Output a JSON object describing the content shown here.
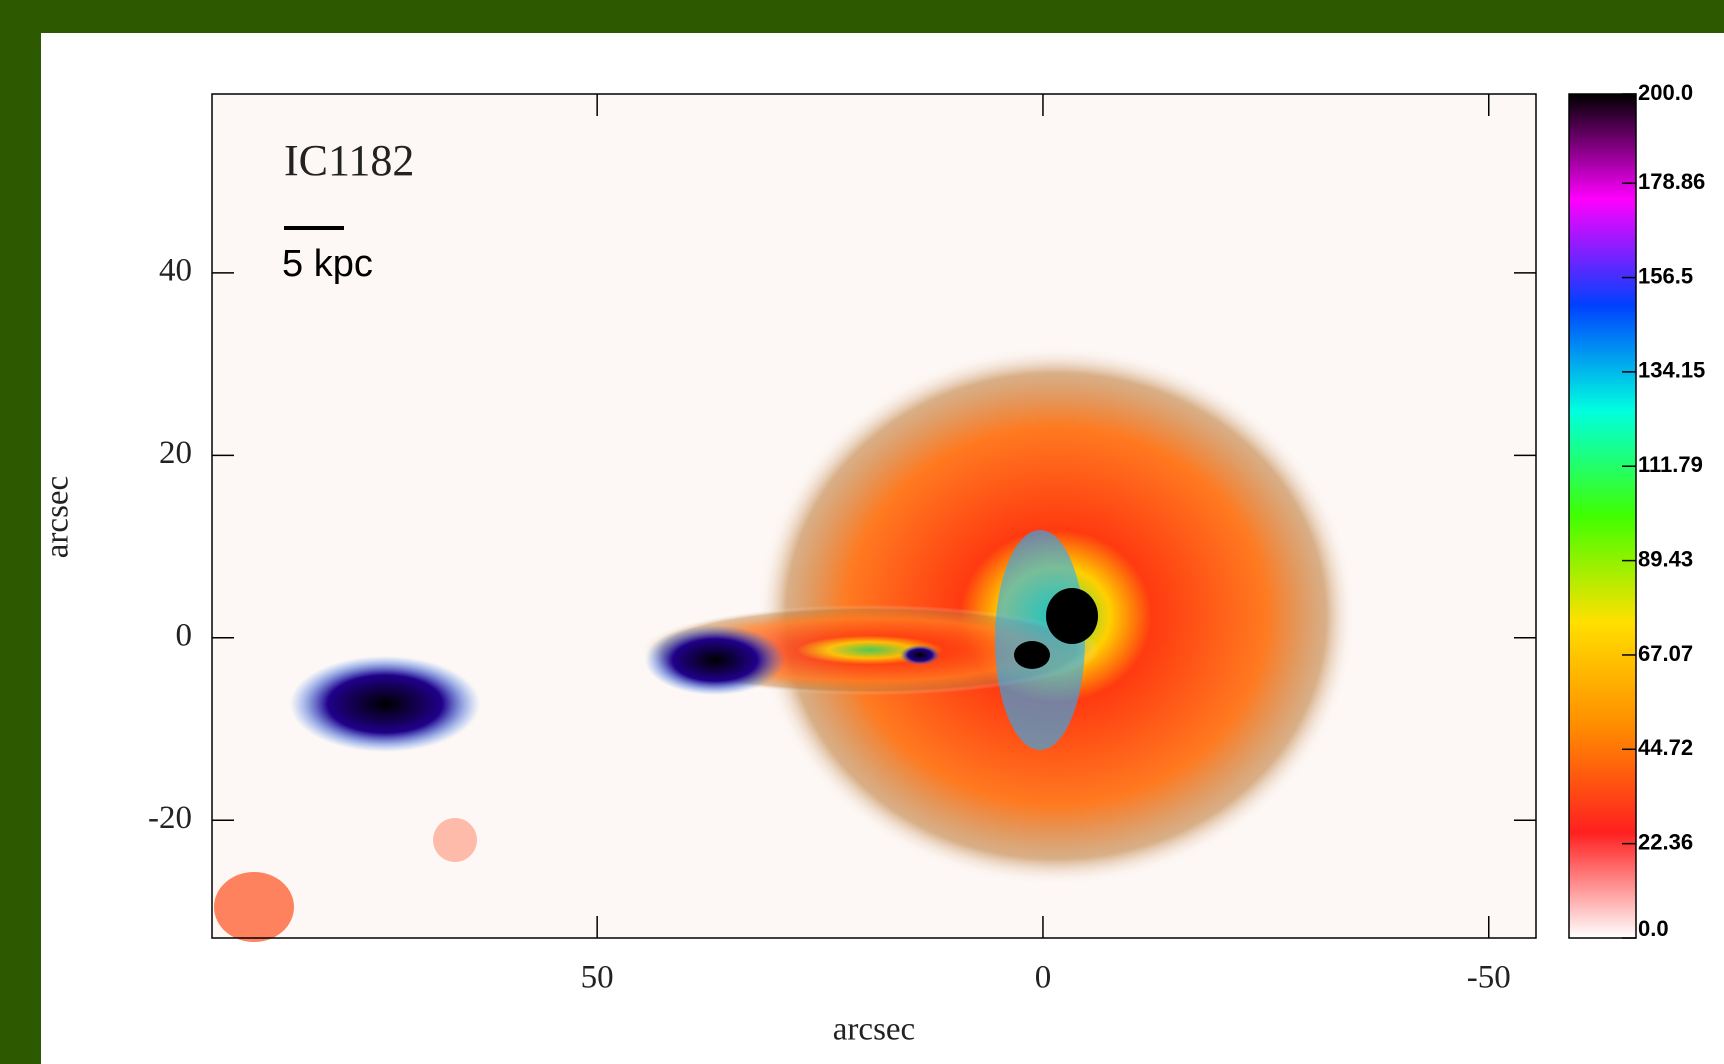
{
  "chart_data": {
    "type": "image",
    "title": "IC1182",
    "scale_label": "5 kpc",
    "xlabel": "arcsec",
    "ylabel": "arcsec",
    "xlim": [
      93.2,
      -55.3
    ],
    "xticks": [
      50,
      0,
      -50
    ],
    "ylim": [
      -32.9,
      59.6
    ],
    "yticks": [
      -20,
      0,
      20,
      40
    ],
    "colorbar": {
      "clim": [
        0,
        200
      ],
      "ticks": [
        {
          "value": 0,
          "label": "0.0"
        },
        22.36,
        44.72,
        67.07,
        89.43,
        111.79,
        134.15,
        156.5,
        178.86,
        {
          "value": 200,
          "label": "200.0"
        }
      ],
      "colormap": [
        "#ffffff",
        "#ff2020",
        "#ff8c00",
        "#ffe000",
        "#40ff00",
        "#00ffe0",
        "#0040ff",
        "#ff00ff",
        "#000000"
      ]
    }
  }
}
